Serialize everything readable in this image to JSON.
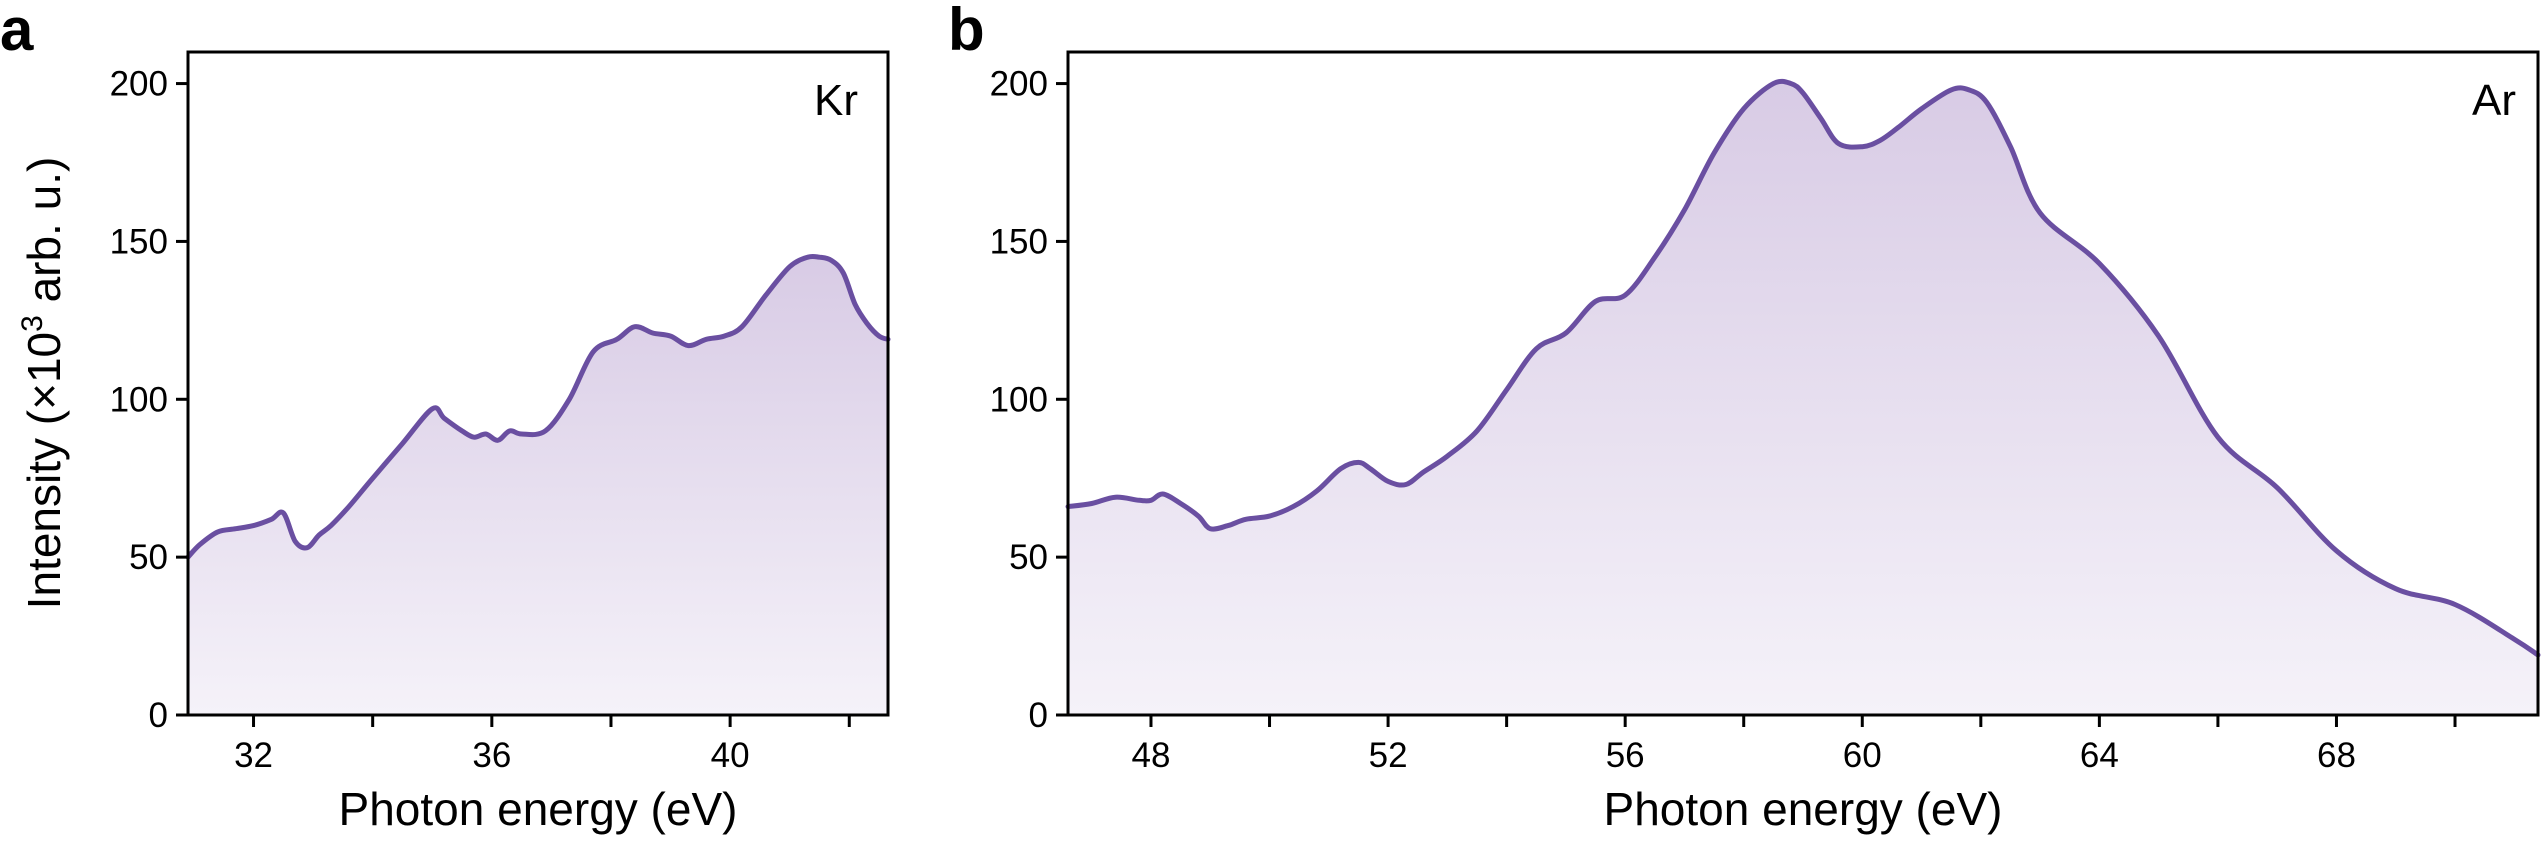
{
  "chart_data": [
    {
      "type": "area",
      "panel_label": "a",
      "element": "Kr",
      "xlabel": "Photon energy (eV)",
      "ylabel": "Intensity (×10",
      "ylabel_sup": "3",
      "ylabel_tail": " arb. u.)",
      "xlim": [
        30.9,
        42.65
      ],
      "ylim": [
        0,
        210
      ],
      "xticks": [
        32,
        36,
        40
      ],
      "yticks": [
        0,
        50,
        100,
        150,
        200
      ],
      "x": [
        30.9,
        31.1,
        31.4,
        31.7,
        32.0,
        32.3,
        32.5,
        32.7,
        32.9,
        33.1,
        33.3,
        33.6,
        34.0,
        34.5,
        35.0,
        35.2,
        35.5,
        35.7,
        35.9,
        36.1,
        36.3,
        36.5,
        36.9,
        37.3,
        37.7,
        38.1,
        38.4,
        38.7,
        39.0,
        39.3,
        39.6,
        39.9,
        40.2,
        40.6,
        41.0,
        41.3,
        41.5,
        41.7,
        41.9,
        42.1,
        42.3,
        42.5,
        42.65
      ],
      "values": [
        50,
        54,
        58,
        59,
        60,
        62,
        64,
        55,
        53,
        57,
        60,
        66,
        75,
        86,
        97,
        94,
        90,
        88,
        89,
        87,
        90,
        89,
        90,
        100,
        115,
        119,
        123,
        121,
        120,
        117,
        119,
        120,
        123,
        133,
        142,
        145,
        145,
        144,
        140,
        130,
        124,
        120,
        119
      ],
      "fill_color": "#d9cce6",
      "line_color": "#6a4fa1"
    },
    {
      "type": "area",
      "panel_label": "b",
      "element": "Ar",
      "xlabel": "Photon energy (eV)",
      "xlim": [
        46.6,
        71.4
      ],
      "ylim": [
        0,
        210
      ],
      "xticks": [
        48,
        52,
        56,
        60,
        64,
        68
      ],
      "yticks": [
        0,
        50,
        100,
        150,
        200
      ],
      "x": [
        46.6,
        47.0,
        47.4,
        47.8,
        48.0,
        48.2,
        48.5,
        48.8,
        49.0,
        49.3,
        49.6,
        50.0,
        50.4,
        50.8,
        51.2,
        51.5,
        51.7,
        52.0,
        52.3,
        52.6,
        53.0,
        53.5,
        54.0,
        54.5,
        55.0,
        55.5,
        56.0,
        56.5,
        57.0,
        57.5,
        58.0,
        58.5,
        58.8,
        59.0,
        59.3,
        59.6,
        60.0,
        60.3,
        60.6,
        61.0,
        61.5,
        61.8,
        62.1,
        62.5,
        63.0,
        64.0,
        65.0,
        66.0,
        67.0,
        68.0,
        69.0,
        70.0,
        71.0,
        71.4
      ],
      "values": [
        66,
        67,
        69,
        68,
        68,
        70,
        67,
        63,
        59,
        60,
        62,
        63,
        66,
        71,
        78,
        80,
        78,
        74,
        73,
        77,
        82,
        90,
        103,
        116,
        121,
        131,
        133,
        145,
        160,
        178,
        192,
        200,
        200,
        197,
        189,
        181,
        180,
        182,
        186,
        192,
        198,
        198,
        194,
        180,
        159,
        143,
        120,
        88,
        72,
        52,
        40,
        35,
        24,
        19
      ],
      "fill_color": "#d9cce6",
      "line_color": "#6a4fa1"
    }
  ]
}
